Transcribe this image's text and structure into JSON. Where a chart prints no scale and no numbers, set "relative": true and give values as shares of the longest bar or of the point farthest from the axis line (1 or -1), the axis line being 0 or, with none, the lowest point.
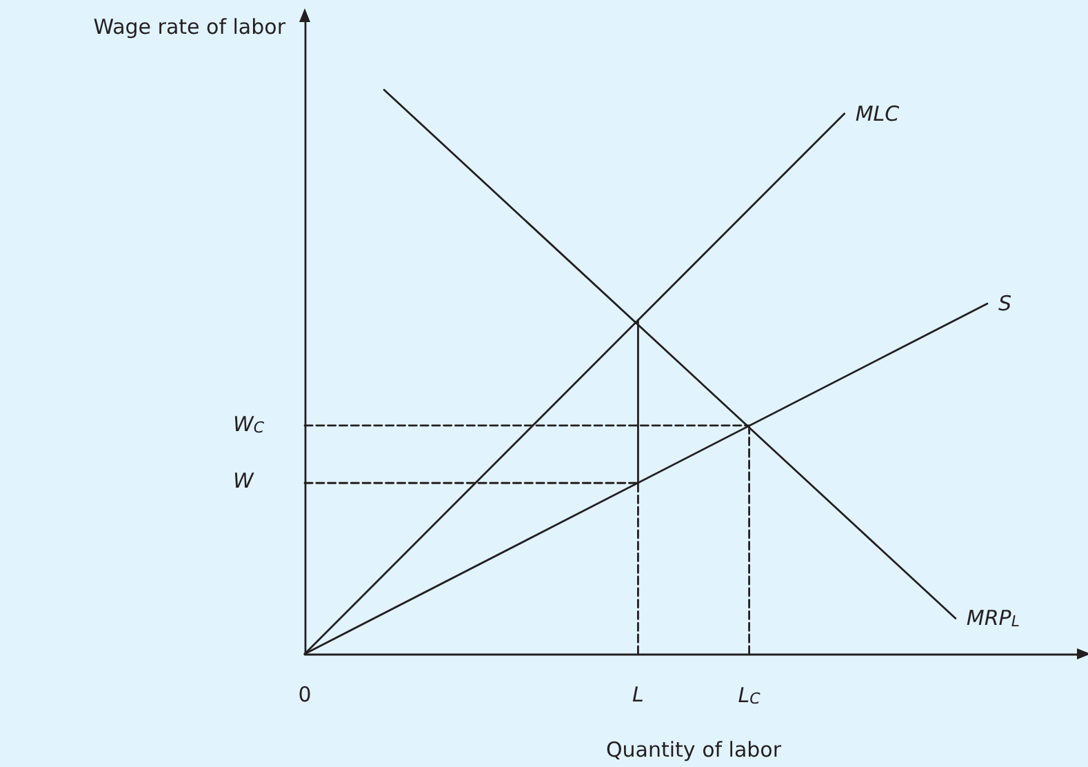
{
  "chart_data": {
    "type": "line",
    "relative": true,
    "xlabel": "Quantity of labor",
    "ylabel": "Wage rate of labor",
    "categories": [
      "0",
      null,
      null,
      null,
      null,
      null,
      null,
      null,
      null,
      null,
      null,
      null,
      null,
      null,
      null,
      null,
      null,
      null,
      null,
      null,
      null,
      "L",
      null,
      null,
      null,
      null,
      null,
      null,
      "L$_{C}$",
      null,
      null,
      null,
      null,
      null,
      null,
      null,
      null,
      null,
      null,
      null,
      null,
      null,
      null,
      null,
      null,
      null,
      null,
      null,
      null,
      null
    ],
    "marker": "none",
    "line_style": "solid",
    "series": [
      {
        "name": "MLC",
        "color": "#231f20",
        "values": [
          0,
          null,
          null,
          null,
          null,
          null,
          null,
          null,
          null,
          null,
          null,
          null,
          null,
          null,
          null,
          null,
          null,
          null,
          null,
          null,
          null,
          null,
          null,
          null,
          null,
          null,
          null,
          null,
          null,
          null,
          null,
          null,
          null,
          null,
          0.958,
          null,
          null,
          null,
          null,
          null,
          null,
          null,
          null,
          null,
          null,
          null,
          null,
          null,
          null,
          null
        ]
      },
      {
        "name": "S",
        "color": "#231f20",
        "values": [
          0,
          null,
          null,
          null,
          null,
          null,
          null,
          null,
          null,
          null,
          null,
          null,
          null,
          null,
          null,
          null,
          null,
          null,
          null,
          null,
          null,
          null,
          null,
          null,
          null,
          null,
          null,
          null,
          null,
          null,
          null,
          null,
          null,
          null,
          null,
          null,
          null,
          null,
          null,
          null,
          null,
          null,
          null,
          0.621,
          null,
          null,
          null,
          null,
          null,
          null
        ]
      },
      {
        "name": "MRP$_{L}$",
        "color": "#231f20",
        "values": [
          null,
          null,
          null,
          null,
          null,
          1,
          null,
          null,
          null,
          null,
          null,
          null,
          null,
          null,
          null,
          null,
          null,
          null,
          null,
          null,
          null,
          null,
          null,
          null,
          null,
          null,
          null,
          null,
          null,
          null,
          null,
          null,
          null,
          null,
          null,
          null,
          null,
          null,
          null,
          null,
          null,
          0.063,
          null,
          null,
          null,
          null,
          null,
          null,
          null,
          null
        ]
      },
      {
        "color": "#231f20",
        "x": [
          "L",
          "L"
        ],
        "values": [
          0.303,
          0.592
        ]
      },
      {
        "name": "W",
        "color": "#231f20",
        "line_style": "dashed",
        "x": [
          "0",
          "L"
        ],
        "values": [
          0.303,
          0.303
        ]
      },
      {
        "color": "#231f20",
        "line_style": "dashed",
        "x": [
          "L",
          "L"
        ],
        "values": [
          0,
          0.303
        ]
      },
      {
        "name": "W$_{C}$",
        "color": "#231f20",
        "line_style": "dashed",
        "x": [
          "0",
          "L$_{C}$"
        ],
        "values": [
          0.405,
          0.405
        ]
      },
      {
        "color": "#231f20",
        "line_style": "dashed",
        "x": [
          "L$_{C}$",
          "L$_{C}$"
        ],
        "values": [
          0,
          0.405
        ]
      }
    ]
  }
}
